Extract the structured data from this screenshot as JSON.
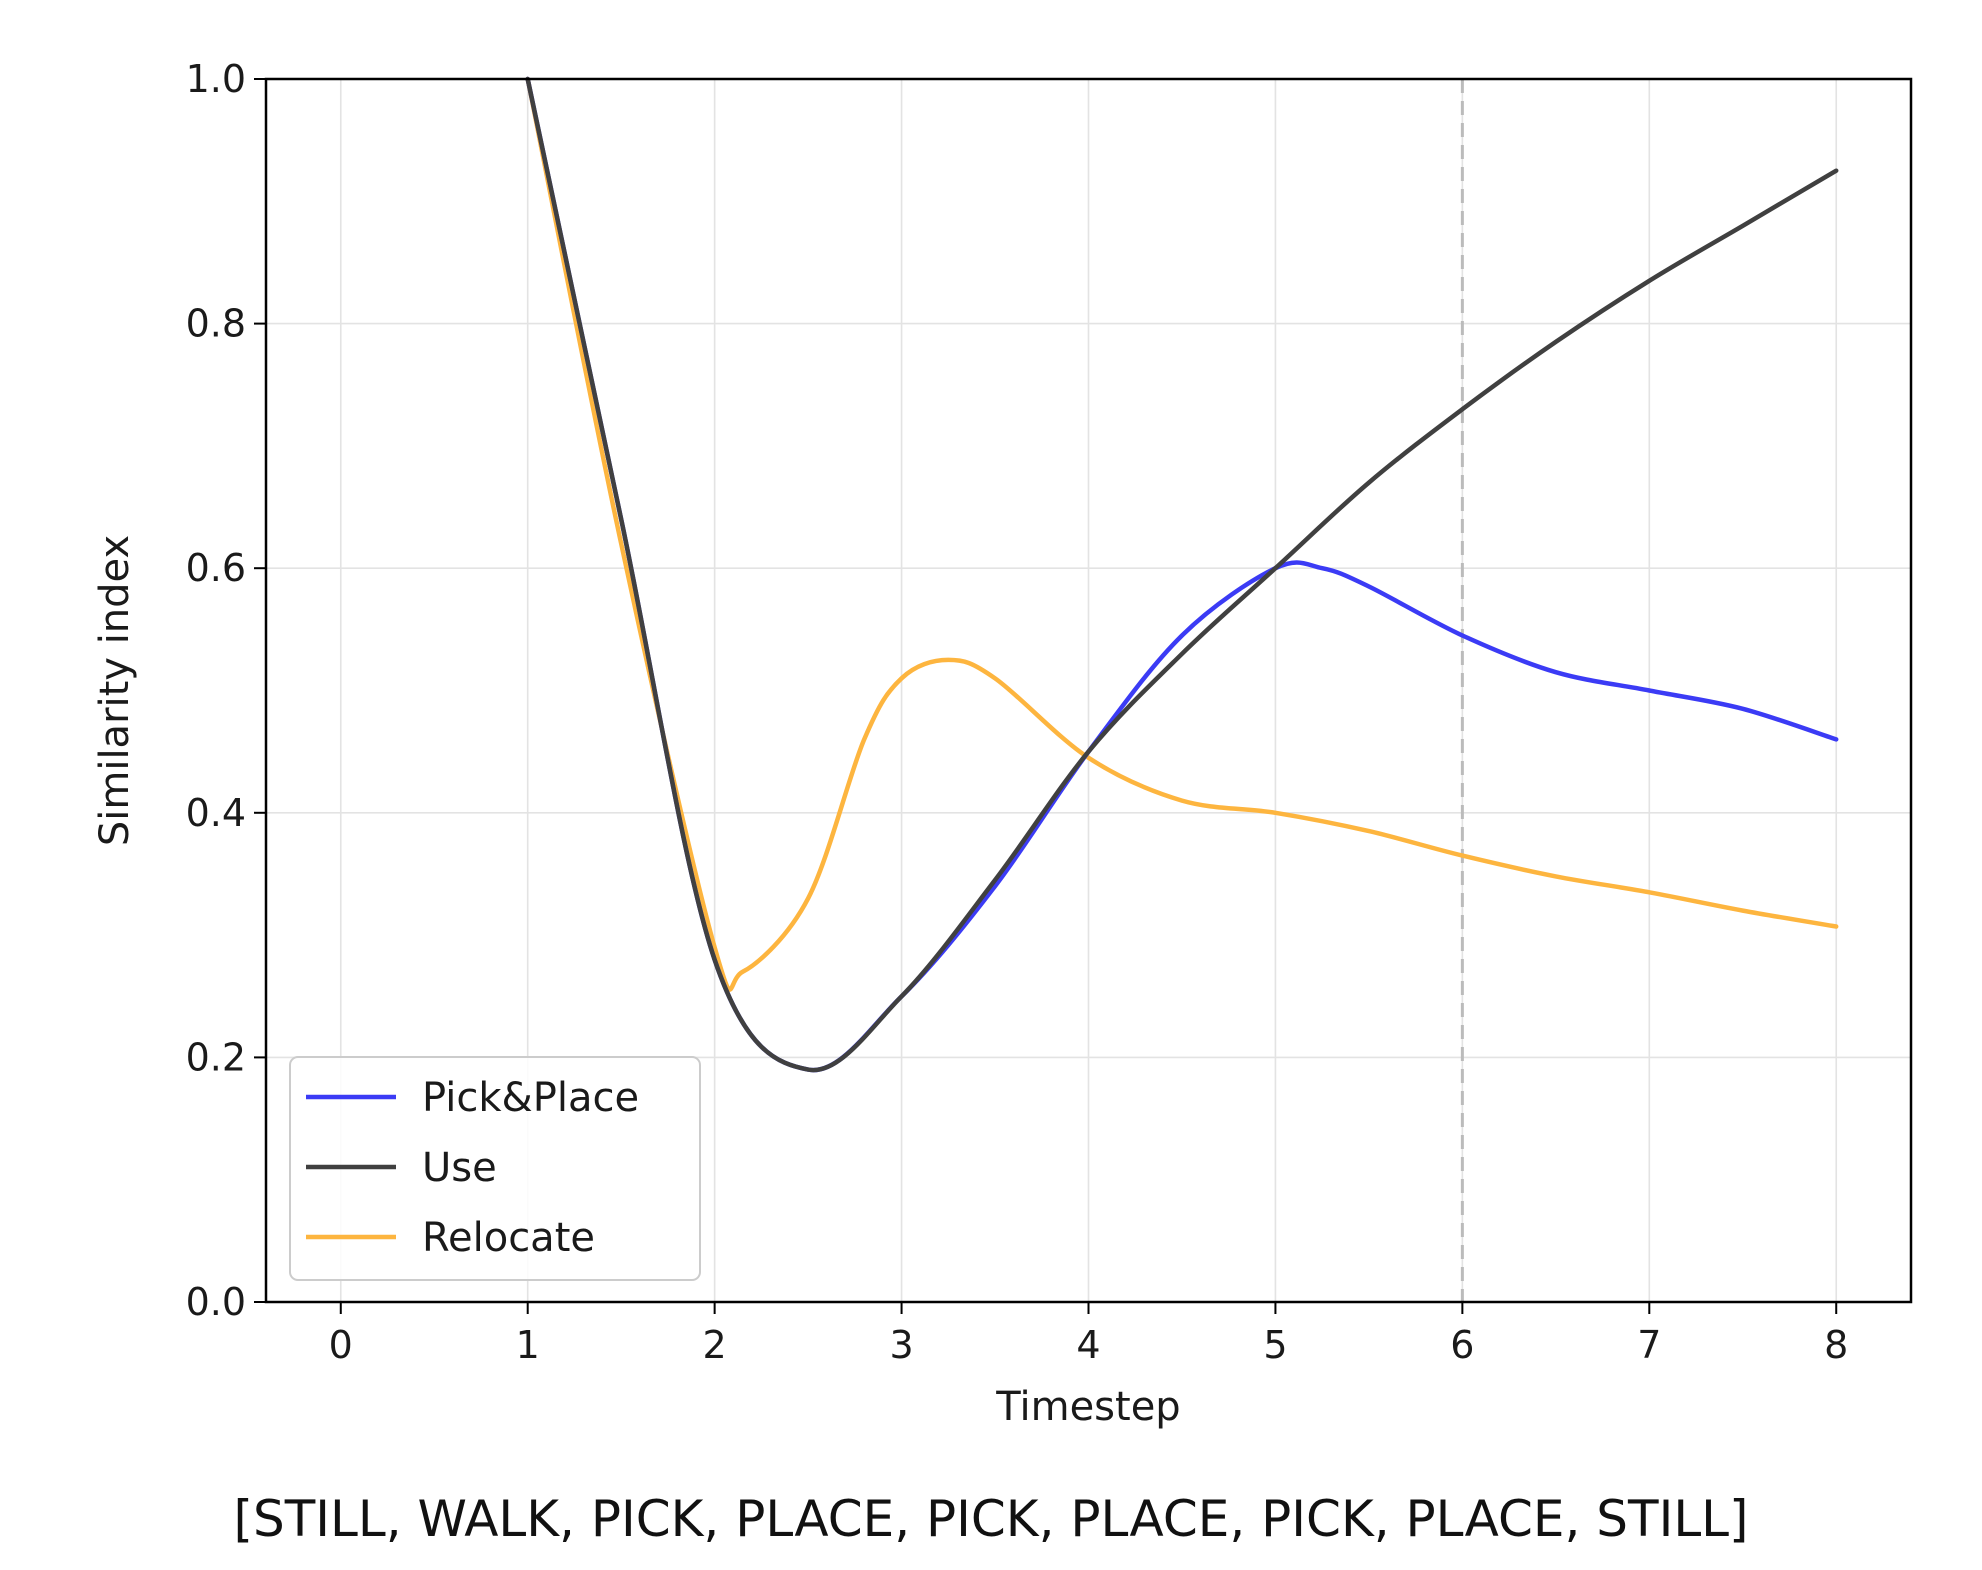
{
  "chart_data": {
    "type": "line",
    "title": "",
    "xlabel": "Timestep",
    "ylabel": "Similarity index",
    "xlim": [
      -0.4,
      8.4
    ],
    "ylim": [
      0.0,
      1.0
    ],
    "xticks": [
      "0",
      "1",
      "2",
      "3",
      "4",
      "5",
      "6",
      "7",
      "8"
    ],
    "yticks": [
      "0.0",
      "0.2",
      "0.4",
      "0.6",
      "0.8",
      "1.0"
    ],
    "grid": true,
    "legend_position": "lower-left",
    "vline": {
      "x": 6,
      "style": "dashed",
      "color": "#bbbbbb"
    },
    "series": [
      {
        "name": "Pick&Place",
        "color": "#3b3bf5",
        "points": [
          [
            1,
            1.0
          ],
          [
            1.5,
            0.64
          ],
          [
            2,
            0.28
          ],
          [
            2.5,
            0.19
          ],
          [
            3,
            0.25
          ],
          [
            3.5,
            0.34
          ],
          [
            4,
            0.45
          ],
          [
            4.5,
            0.545
          ],
          [
            5,
            0.6
          ],
          [
            5.25,
            0.6
          ],
          [
            5.5,
            0.585
          ],
          [
            6,
            0.545
          ],
          [
            6.5,
            0.515
          ],
          [
            7,
            0.5
          ],
          [
            7.5,
            0.485
          ],
          [
            8,
            0.46
          ]
        ]
      },
      {
        "name": "Use",
        "color": "#404040",
        "points": [
          [
            1,
            1.0
          ],
          [
            1.5,
            0.64
          ],
          [
            2,
            0.28
          ],
          [
            2.5,
            0.19
          ],
          [
            3,
            0.25
          ],
          [
            3.5,
            0.345
          ],
          [
            4,
            0.45
          ],
          [
            4.5,
            0.53
          ],
          [
            5,
            0.6
          ],
          [
            5.5,
            0.67
          ],
          [
            6,
            0.73
          ],
          [
            6.5,
            0.785
          ],
          [
            7,
            0.835
          ],
          [
            7.5,
            0.88
          ],
          [
            8,
            0.925
          ]
        ]
      },
      {
        "name": "Relocate",
        "color": "#fdb53f",
        "points": [
          [
            1,
            1.0
          ],
          [
            1.5,
            0.62
          ],
          [
            2,
            0.29
          ],
          [
            2.15,
            0.27
          ],
          [
            2.5,
            0.33
          ],
          [
            2.8,
            0.46
          ],
          [
            3,
            0.51
          ],
          [
            3.25,
            0.525
          ],
          [
            3.5,
            0.51
          ],
          [
            4,
            0.445
          ],
          [
            4.5,
            0.41
          ],
          [
            5,
            0.4
          ],
          [
            5.5,
            0.385
          ],
          [
            6,
            0.365
          ],
          [
            6.5,
            0.348
          ],
          [
            7,
            0.335
          ],
          [
            7.5,
            0.32
          ],
          [
            8,
            0.307
          ]
        ]
      }
    ],
    "caption": "[STILL, WALK, PICK, PLACE, PICK, PLACE, PICK, PLACE, STILL]"
  }
}
